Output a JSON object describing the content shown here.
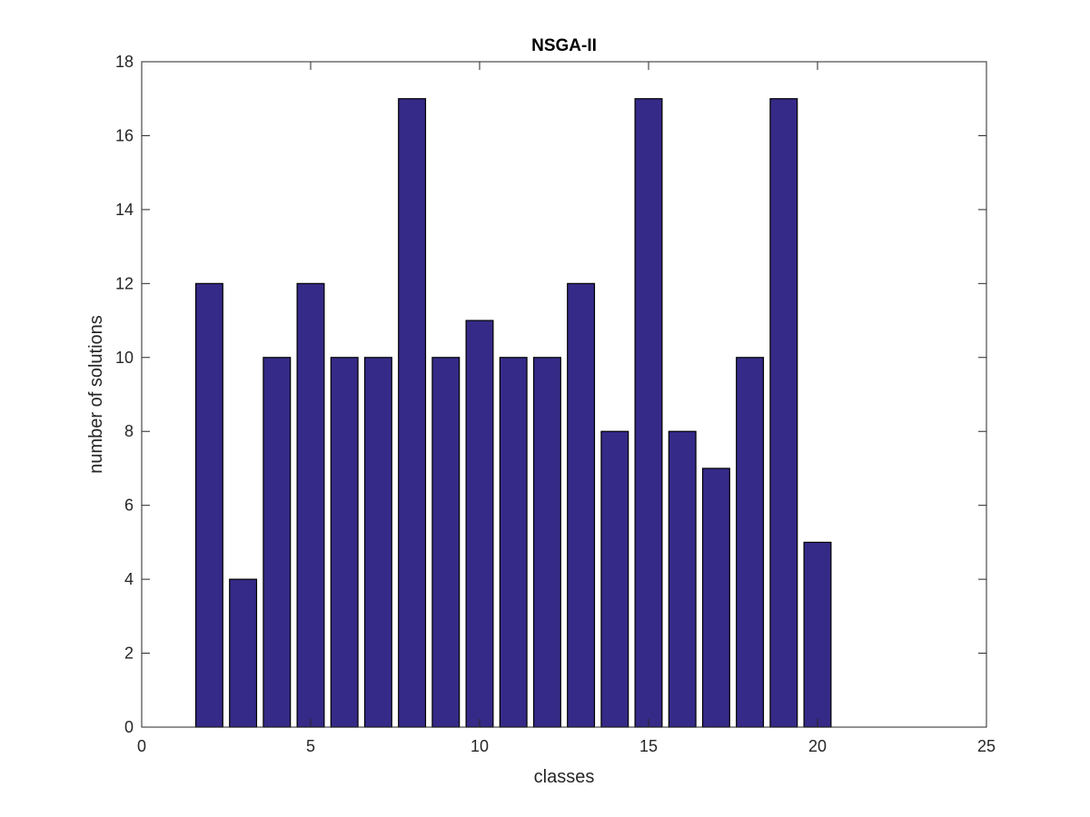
{
  "chart_data": {
    "type": "bar",
    "title": "NSGA-II",
    "xlabel": "classes",
    "ylabel": "number of solutions",
    "x": [
      2,
      3,
      4,
      5,
      6,
      7,
      8,
      9,
      10,
      11,
      12,
      13,
      14,
      15,
      16,
      17,
      18,
      19,
      20
    ],
    "values": [
      12,
      4,
      10,
      12,
      10,
      10,
      17,
      10,
      11,
      10,
      10,
      12,
      8,
      17,
      8,
      7,
      10,
      17,
      5
    ],
    "xlim": [
      0,
      25
    ],
    "ylim": [
      0,
      18
    ],
    "xticks": [
      0,
      5,
      10,
      15,
      20,
      25
    ],
    "yticks": [
      0,
      2,
      4,
      6,
      8,
      10,
      12,
      14,
      16,
      18
    ],
    "bar_width": 0.8,
    "grid": false,
    "colors": {
      "bar_fill": "#352a87",
      "bar_edge": "#000000",
      "axis": "#262626",
      "background": "#ffffff"
    }
  }
}
